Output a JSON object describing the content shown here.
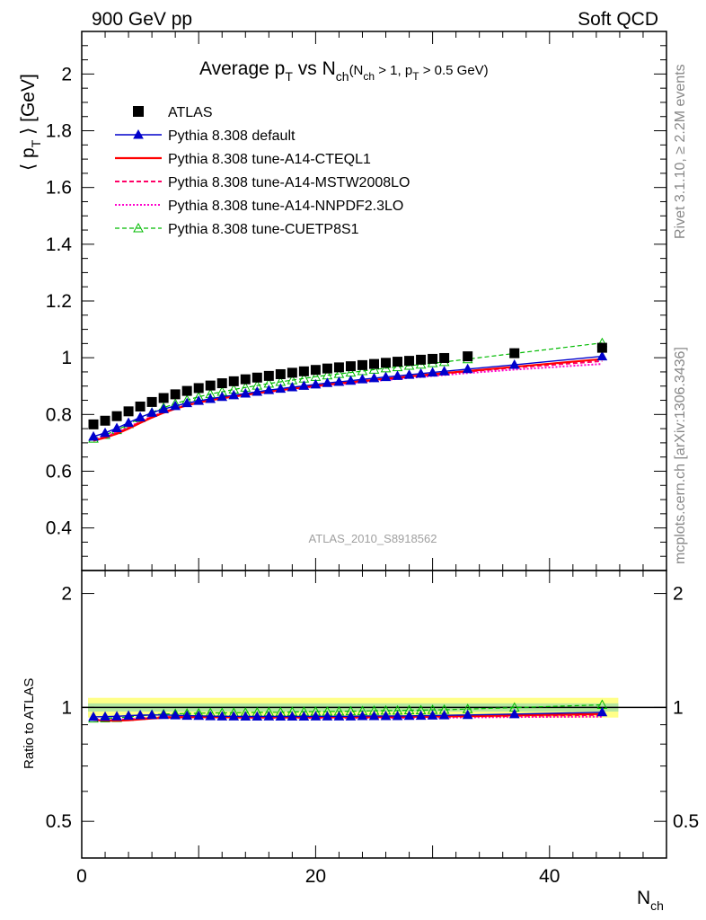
{
  "header": {
    "left": "900 GeV pp",
    "right": "Soft QCD"
  },
  "plot_title": {
    "main_a": "Average p",
    "main_sub_a": "T",
    "main_b": " vs N",
    "main_sub_b": "ch",
    "paren_a": "(N",
    "paren_sub_a": "ch",
    "paren_b": " > 1, p",
    "paren_sub_b": "T",
    "paren_c": " > 0.5 GeV)"
  },
  "side_labels": {
    "rivet": "Rivet 3.1.10, ≥ 2.2M events",
    "mcplots": "mcplots.cern.ch [arXiv:1306.3436]"
  },
  "watermark": "ATLAS_2010_S8918562",
  "axes": {
    "ylabel_a": "⟨ p",
    "ylabel_sub": "T",
    "ylabel_b": " ⟩  [GeV]",
    "ratio_ylabel": "Ratio to ATLAS",
    "xlabel": "N",
    "xlabel_sub": "ch"
  },
  "colors": {
    "atlas": "#000000",
    "default": "#0000cc",
    "cteql1": "#ff0000",
    "mstw": "#ff0066",
    "nnpdf": "#ff00cc",
    "cuetp": "#00bb00",
    "band_inner": "#b5e8a0",
    "band_outer": "#ffff88"
  },
  "chart_data": {
    "type": "scatter",
    "x_range": [
      0,
      50
    ],
    "y_range_main": [
      0.25,
      2.15
    ],
    "y_range_ratio": [
      0.4,
      2.3
    ],
    "ratio_log_scale": true,
    "main_yticks": [
      {
        "v": 0.4,
        "label": "0.4"
      },
      {
        "v": 0.6,
        "label": "0.6"
      },
      {
        "v": 0.8,
        "label": "0.8"
      },
      {
        "v": 1.0,
        "label": "1"
      },
      {
        "v": 1.2,
        "label": "1.2"
      },
      {
        "v": 1.4,
        "label": "1.4"
      },
      {
        "v": 1.6,
        "label": "1.6"
      },
      {
        "v": 1.8,
        "label": "1.8"
      },
      {
        "v": 2.0,
        "label": "2"
      }
    ],
    "ratio_yticks": [
      {
        "v": 0.5,
        "label": "0.5"
      },
      {
        "v": 1.0,
        "label": "1"
      },
      {
        "v": 2.0,
        "label": "2"
      }
    ],
    "xticks": [
      {
        "v": 0,
        "label": "0"
      },
      {
        "v": 20,
        "label": "20"
      },
      {
        "v": 40,
        "label": "40"
      }
    ],
    "x": [
      1,
      2,
      3,
      4,
      5,
      6,
      7,
      8,
      9,
      10,
      11,
      12,
      13,
      14,
      15,
      16,
      17,
      18,
      19,
      20,
      21,
      22,
      23,
      24,
      25,
      26,
      27,
      28,
      29,
      30,
      31,
      33,
      37,
      44.5
    ],
    "series": [
      {
        "name": "ATLAS",
        "key": "atlas",
        "style": "data",
        "values": [
          0.765,
          0.778,
          0.794,
          0.811,
          0.828,
          0.844,
          0.858,
          0.871,
          0.883,
          0.893,
          0.902,
          0.91,
          0.917,
          0.924,
          0.93,
          0.936,
          0.942,
          0.947,
          0.952,
          0.957,
          0.962,
          0.966,
          0.97,
          0.974,
          0.978,
          0.982,
          0.986,
          0.989,
          0.993,
          0.996,
          0.999,
          1.005,
          1.016,
          1.035
        ],
        "ratio": [
          1,
          1,
          1,
          1,
          1,
          1,
          1,
          1,
          1,
          1,
          1,
          1,
          1,
          1,
          1,
          1,
          1,
          1,
          1,
          1,
          1,
          1,
          1,
          1,
          1,
          1,
          1,
          1,
          1,
          1,
          1,
          1,
          1,
          1
        ]
      },
      {
        "name": "Pythia 8.308 default",
        "key": "default",
        "style": "solid-tri",
        "values": [
          0.722,
          0.735,
          0.752,
          0.771,
          0.79,
          0.806,
          0.819,
          0.83,
          0.84,
          0.848,
          0.855,
          0.862,
          0.868,
          0.874,
          0.88,
          0.886,
          0.891,
          0.896,
          0.901,
          0.906,
          0.911,
          0.915,
          0.919,
          0.924,
          0.928,
          0.932,
          0.936,
          0.94,
          0.944,
          0.948,
          0.952,
          0.96,
          0.975,
          1.005
        ],
        "ratio": [
          0.944,
          0.945,
          0.947,
          0.951,
          0.954,
          0.955,
          0.955,
          0.953,
          0.951,
          0.95,
          0.948,
          0.947,
          0.947,
          0.946,
          0.946,
          0.947,
          0.946,
          0.946,
          0.946,
          0.947,
          0.947,
          0.947,
          0.947,
          0.949,
          0.949,
          0.949,
          0.949,
          0.95,
          0.951,
          0.952,
          0.953,
          0.955,
          0.96,
          0.971
        ]
      },
      {
        "name": "Pythia 8.308 tune-A14-CTEQL1",
        "key": "cteql1",
        "style": "solid",
        "values": [
          0.708,
          0.718,
          0.732,
          0.75,
          0.77,
          0.789,
          0.806,
          0.82,
          0.832,
          0.842,
          0.85,
          0.857,
          0.863,
          0.869,
          0.875,
          0.881,
          0.886,
          0.891,
          0.896,
          0.901,
          0.905,
          0.91,
          0.914,
          0.918,
          0.922,
          0.926,
          0.93,
          0.934,
          0.938,
          0.942,
          0.946,
          0.953,
          0.968,
          0.995
        ],
        "ratio": [
          0.926,
          0.923,
          0.922,
          0.925,
          0.93,
          0.935,
          0.939,
          0.941,
          0.942,
          0.943,
          0.942,
          0.942,
          0.941,
          0.94,
          0.941,
          0.941,
          0.941,
          0.941,
          0.941,
          0.942,
          0.941,
          0.942,
          0.942,
          0.943,
          0.943,
          0.943,
          0.943,
          0.944,
          0.945,
          0.946,
          0.947,
          0.948,
          0.953,
          0.961
        ]
      },
      {
        "name": "Pythia 8.308 tune-A14-MSTW2008LO",
        "key": "mstw",
        "style": "dashed",
        "values": [
          0.71,
          0.72,
          0.735,
          0.753,
          0.773,
          0.792,
          0.808,
          0.822,
          0.833,
          0.843,
          0.851,
          0.858,
          0.864,
          0.87,
          0.876,
          0.881,
          0.886,
          0.891,
          0.896,
          0.9,
          0.905,
          0.909,
          0.913,
          0.917,
          0.921,
          0.925,
          0.929,
          0.932,
          0.936,
          0.94,
          0.944,
          0.951,
          0.965,
          0.988
        ],
        "ratio": [
          0.928,
          0.925,
          0.926,
          0.928,
          0.934,
          0.938,
          0.942,
          0.944,
          0.943,
          0.944,
          0.943,
          0.943,
          0.942,
          0.942,
          0.942,
          0.941,
          0.941,
          0.941,
          0.941,
          0.94,
          0.941,
          0.941,
          0.941,
          0.941,
          0.942,
          0.942,
          0.942,
          0.942,
          0.943,
          0.944,
          0.945,
          0.946,
          0.95,
          0.955
        ]
      },
      {
        "name": "Pythia 8.308 tune-A14-NNPDF2.3LO",
        "key": "nnpdf",
        "style": "dotted",
        "values": [
          0.712,
          0.722,
          0.737,
          0.755,
          0.775,
          0.793,
          0.809,
          0.822,
          0.833,
          0.842,
          0.85,
          0.857,
          0.863,
          0.869,
          0.874,
          0.879,
          0.884,
          0.889,
          0.894,
          0.898,
          0.902,
          0.906,
          0.91,
          0.914,
          0.918,
          0.922,
          0.925,
          0.929,
          0.932,
          0.936,
          0.939,
          0.946,
          0.958,
          0.978
        ],
        "ratio": [
          0.931,
          0.928,
          0.928,
          0.931,
          0.936,
          0.939,
          0.943,
          0.944,
          0.943,
          0.943,
          0.942,
          0.942,
          0.941,
          0.94,
          0.94,
          0.939,
          0.938,
          0.939,
          0.939,
          0.938,
          0.938,
          0.938,
          0.938,
          0.938,
          0.939,
          0.939,
          0.938,
          0.939,
          0.939,
          0.94,
          0.94,
          0.941,
          0.943,
          0.945
        ]
      },
      {
        "name": "Pythia 8.308 tune-CUETP8S1",
        "key": "cuetp",
        "style": "dashed-opentri",
        "values": [
          0.715,
          0.728,
          0.745,
          0.766,
          0.787,
          0.807,
          0.824,
          0.838,
          0.851,
          0.862,
          0.872,
          0.88,
          0.888,
          0.895,
          0.902,
          0.909,
          0.915,
          0.921,
          0.927,
          0.933,
          0.938,
          0.943,
          0.948,
          0.953,
          0.958,
          0.963,
          0.967,
          0.972,
          0.976,
          0.981,
          0.985,
          0.995,
          1.015,
          1.052
        ],
        "ratio": [
          0.935,
          0.936,
          0.938,
          0.944,
          0.95,
          0.956,
          0.96,
          0.962,
          0.964,
          0.965,
          0.967,
          0.967,
          0.968,
          0.969,
          0.97,
          0.971,
          0.971,
          0.973,
          0.974,
          0.975,
          0.975,
          0.976,
          0.977,
          0.978,
          0.98,
          0.981,
          0.981,
          0.983,
          0.983,
          0.985,
          0.986,
          0.99,
          0.999,
          1.016
        ]
      }
    ],
    "atlas_band": {
      "x": [
        1,
        2,
        3,
        4,
        5,
        6,
        7,
        8,
        9,
        10,
        11,
        12,
        13,
        14,
        15,
        16,
        17,
        18,
        19,
        20,
        21,
        22,
        23,
        24,
        25,
        26,
        27,
        28,
        29,
        30,
        31,
        33,
        37,
        44.5
      ],
      "inner": 0.025,
      "outer": 0.06
    },
    "legend_position": "top-left"
  }
}
